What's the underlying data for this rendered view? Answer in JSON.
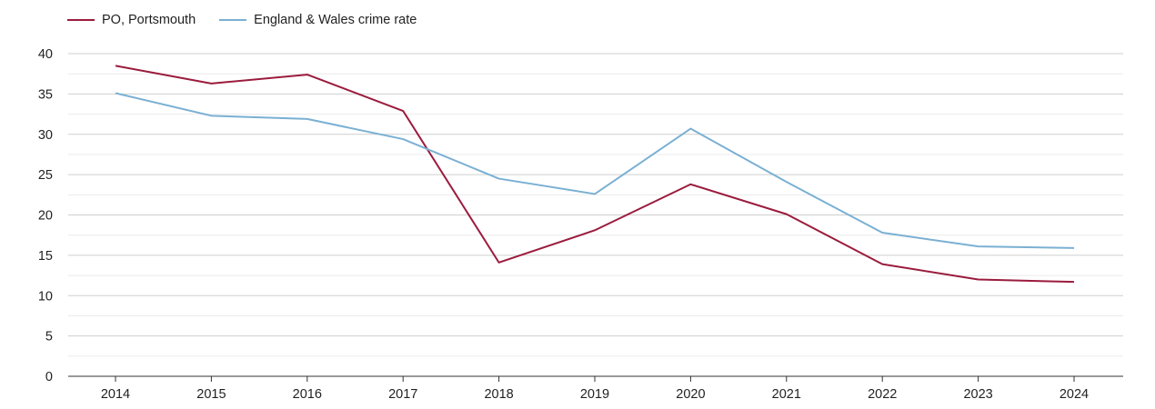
{
  "chart_data": {
    "type": "line",
    "x": [
      "2014",
      "2015",
      "2016",
      "2017",
      "2018",
      "2019",
      "2020",
      "2021",
      "2022",
      "2023",
      "2024"
    ],
    "series": [
      {
        "name": "PO, Portsmouth",
        "color": "#9b1b3d",
        "values": [
          38.5,
          36.3,
          37.4,
          32.9,
          14.1,
          18.1,
          23.8,
          20.1,
          13.9,
          12.0,
          11.7
        ]
      },
      {
        "name": "England & Wales crime rate",
        "color": "#7ab0d3",
        "values": [
          35.1,
          32.3,
          31.9,
          29.4,
          24.5,
          22.6,
          30.7,
          24.1,
          17.8,
          16.1,
          15.9
        ]
      }
    ],
    "yticks": [
      "0",
      "5",
      "10",
      "15",
      "20",
      "25",
      "30",
      "35",
      "40"
    ],
    "ylim": [
      0,
      40
    ],
    "grid": true,
    "legend": "top-left",
    "title": "",
    "xlabel": "",
    "ylabel": ""
  }
}
